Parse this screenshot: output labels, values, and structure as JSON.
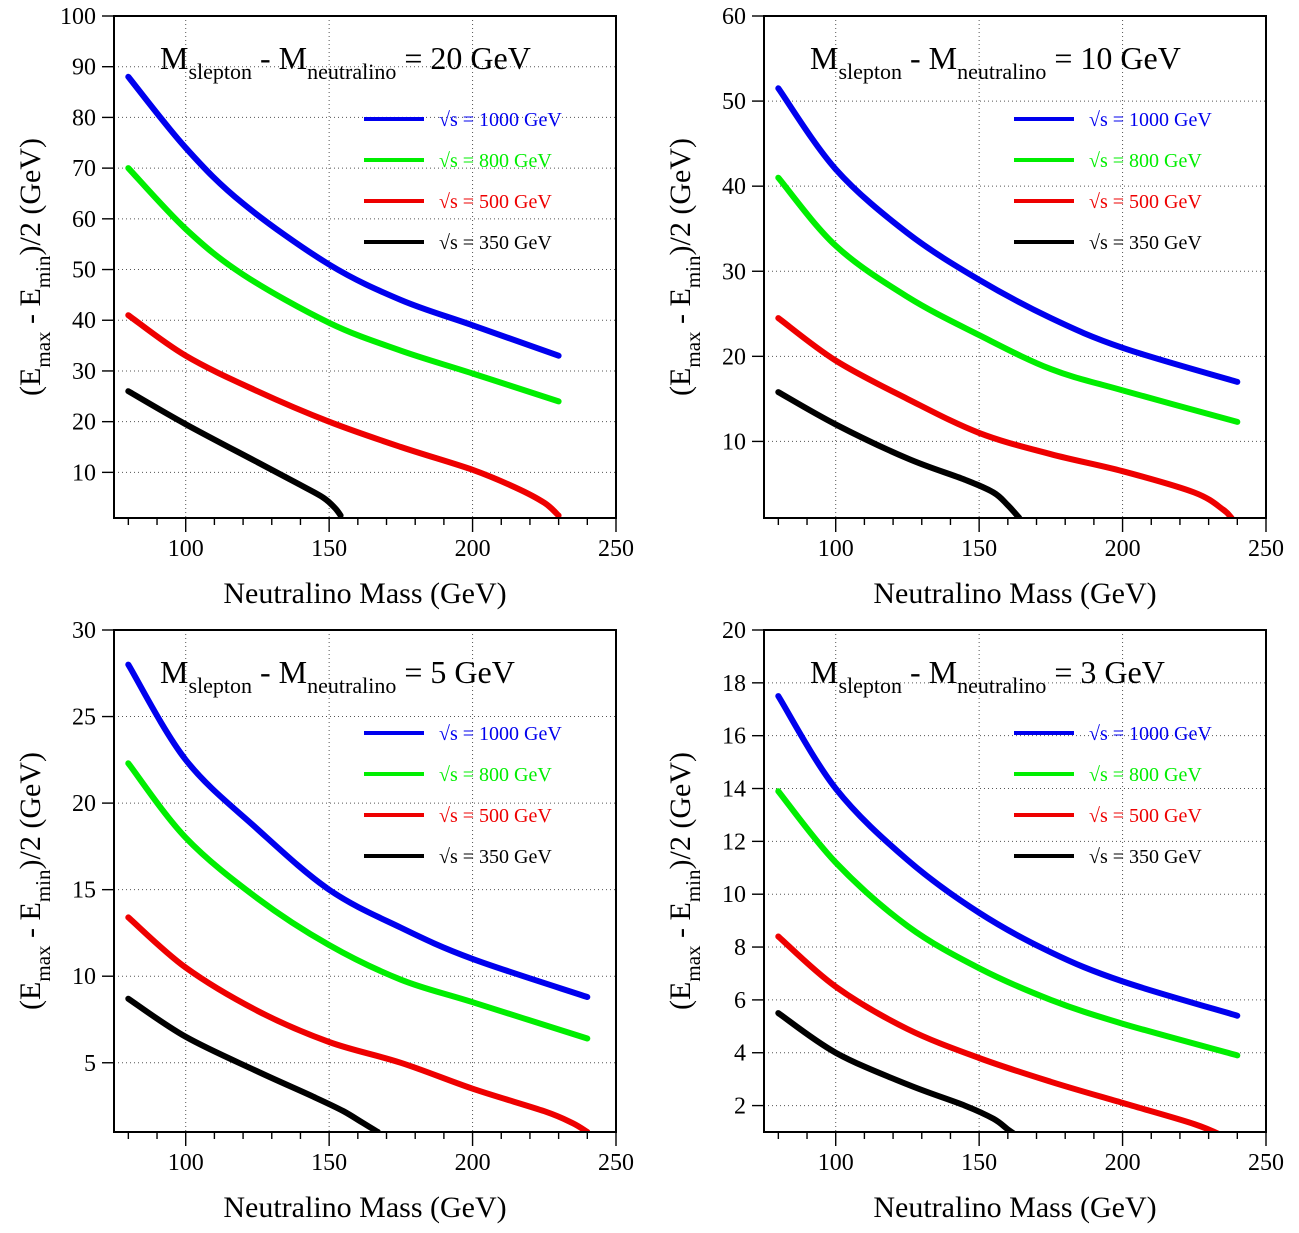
{
  "figure": {
    "x_axis_label": "Neutralino Mass (GeV)",
    "y_axis_label_parts": {
      "open": "(E",
      "sub1": "max",
      "mid": " - E",
      "sub2": "min",
      "close": ")/2 (GeV)"
    },
    "title_parts": {
      "m1": "M",
      "sub1": "slepton",
      "mid": " - M",
      "sub2": "neutralino"
    },
    "legend": [
      {
        "label": "√s = 1000 GeV",
        "color": "#0000ee"
      },
      {
        "label": "√s = 800 GeV",
        "color": "#00ee00"
      },
      {
        "label": "√s = 500 GeV",
        "color": "#ee0000"
      },
      {
        "label": "√s = 350 GeV",
        "color": "#000000"
      }
    ]
  },
  "chart_data": [
    {
      "type": "line",
      "title_value": "= 20 GeV",
      "xlabel": "Neutralino Mass (GeV)",
      "ylabel": "(E_max - E_min)/2 (GeV)",
      "xlim": [
        75,
        250
      ],
      "ylim": [
        1,
        100
      ],
      "xticks": [
        100,
        150,
        200,
        250
      ],
      "yticks": [
        10,
        20,
        30,
        40,
        50,
        60,
        70,
        80,
        90,
        100
      ],
      "grid": true,
      "legend_position": "top-right",
      "series": [
        {
          "name": "√s = 1000 GeV",
          "color": "#0000ee",
          "x": [
            80,
            100,
            120,
            150,
            175,
            200,
            230
          ],
          "y": [
            88,
            74,
            63,
            51,
            44,
            39,
            33
          ]
        },
        {
          "name": "√s = 800 GeV",
          "color": "#00ee00",
          "x": [
            80,
            100,
            120,
            150,
            175,
            200,
            230
          ],
          "y": [
            70,
            58,
            49,
            39.5,
            34,
            29.5,
            24
          ]
        },
        {
          "name": "√s = 500 GeV",
          "color": "#ee0000",
          "x": [
            80,
            100,
            125,
            150,
            175,
            200,
            215,
            225,
            230
          ],
          "y": [
            41,
            33,
            26,
            20,
            15,
            10.5,
            7,
            4,
            1.5
          ]
        },
        {
          "name": "√s = 350 GeV",
          "color": "#000000",
          "x": [
            80,
            100,
            125,
            140,
            148,
            152,
            154
          ],
          "y": [
            26,
            19.5,
            12,
            7.5,
            5,
            3,
            1.5
          ]
        }
      ]
    },
    {
      "type": "line",
      "title_value": "= 10 GeV",
      "xlabel": "Neutralino Mass (GeV)",
      "ylabel": "(E_max - E_min)/2 (GeV)",
      "xlim": [
        75,
        250
      ],
      "ylim": [
        1,
        60
      ],
      "xticks": [
        100,
        150,
        200,
        250
      ],
      "yticks": [
        10,
        20,
        30,
        40,
        50,
        60
      ],
      "grid": true,
      "legend_position": "top-right",
      "series": [
        {
          "name": "√s = 1000 GeV",
          "color": "#0000ee",
          "x": [
            80,
            100,
            125,
            150,
            175,
            200,
            240
          ],
          "y": [
            51.5,
            42,
            34.5,
            29,
            24.5,
            21,
            17
          ]
        },
        {
          "name": "√s = 800 GeV",
          "color": "#00ee00",
          "x": [
            80,
            100,
            125,
            150,
            175,
            200,
            240
          ],
          "y": [
            41,
            33,
            27,
            22.5,
            18.5,
            16,
            12.3
          ]
        },
        {
          "name": "√s = 500 GeV",
          "color": "#ee0000",
          "x": [
            80,
            100,
            125,
            150,
            175,
            200,
            225,
            235,
            238
          ],
          "y": [
            24.5,
            19.5,
            15,
            11,
            8.5,
            6.5,
            4,
            2,
            1
          ]
        },
        {
          "name": "√s = 350 GeV",
          "color": "#000000",
          "x": [
            80,
            100,
            125,
            145,
            155,
            160,
            164
          ],
          "y": [
            15.8,
            12,
            8,
            5.5,
            4,
            2.5,
            1
          ]
        }
      ]
    },
    {
      "type": "line",
      "title_value": "= 5 GeV",
      "xlabel": "Neutralino Mass (GeV)",
      "ylabel": "(E_max - E_min)/2 (GeV)",
      "xlim": [
        75,
        250
      ],
      "ylim": [
        1,
        30
      ],
      "xticks": [
        100,
        150,
        200,
        250
      ],
      "yticks": [
        5,
        10,
        15,
        20,
        25,
        30
      ],
      "grid": true,
      "legend_position": "top-right",
      "series": [
        {
          "name": "√s = 1000 GeV",
          "color": "#0000ee",
          "x": [
            80,
            100,
            125,
            150,
            175,
            200,
            240
          ],
          "y": [
            28,
            22.5,
            18.5,
            15,
            12.8,
            11,
            8.8
          ]
        },
        {
          "name": "√s = 800 GeV",
          "color": "#00ee00",
          "x": [
            80,
            100,
            125,
            150,
            175,
            200,
            240
          ],
          "y": [
            22.3,
            18,
            14.5,
            11.8,
            9.8,
            8.5,
            6.4
          ]
        },
        {
          "name": "√s = 500 GeV",
          "color": "#ee0000",
          "x": [
            80,
            100,
            125,
            150,
            175,
            200,
            225,
            235,
            240
          ],
          "y": [
            13.4,
            10.5,
            8,
            6.2,
            5,
            3.5,
            2.2,
            1.5,
            1
          ]
        },
        {
          "name": "√s = 350 GeV",
          "color": "#000000",
          "x": [
            80,
            100,
            125,
            145,
            155,
            162,
            167
          ],
          "y": [
            8.7,
            6.5,
            4.5,
            3,
            2.2,
            1.5,
            1
          ]
        }
      ]
    },
    {
      "type": "line",
      "title_value": "= 3 GeV",
      "xlabel": "Neutralino Mass (GeV)",
      "ylabel": "(E_max - E_min)/2 (GeV)",
      "xlim": [
        75,
        250
      ],
      "ylim": [
        1,
        20
      ],
      "xticks": [
        100,
        150,
        200,
        250
      ],
      "yticks": [
        2,
        4,
        6,
        8,
        10,
        12,
        14,
        16,
        18,
        20
      ],
      "grid": true,
      "legend_position": "top-right",
      "series": [
        {
          "name": "√s = 1000 GeV",
          "color": "#0000ee",
          "x": [
            80,
            100,
            125,
            150,
            175,
            200,
            240
          ],
          "y": [
            17.5,
            14,
            11.3,
            9.3,
            7.8,
            6.7,
            5.4
          ]
        },
        {
          "name": "√s = 800 GeV",
          "color": "#00ee00",
          "x": [
            80,
            100,
            125,
            150,
            175,
            200,
            240
          ],
          "y": [
            13.9,
            11.2,
            8.8,
            7.2,
            6,
            5.1,
            3.9
          ]
        },
        {
          "name": "√s = 500 GeV",
          "color": "#ee0000",
          "x": [
            80,
            100,
            125,
            150,
            175,
            200,
            225,
            236
          ],
          "y": [
            8.4,
            6.5,
            4.9,
            3.8,
            2.9,
            2.1,
            1.3,
            0.8
          ]
        },
        {
          "name": "√s = 350 GeV",
          "color": "#000000",
          "x": [
            80,
            100,
            125,
            145,
            155,
            160,
            164
          ],
          "y": [
            5.5,
            4,
            2.8,
            2,
            1.5,
            1.1,
            0.8
          ]
        }
      ]
    }
  ]
}
